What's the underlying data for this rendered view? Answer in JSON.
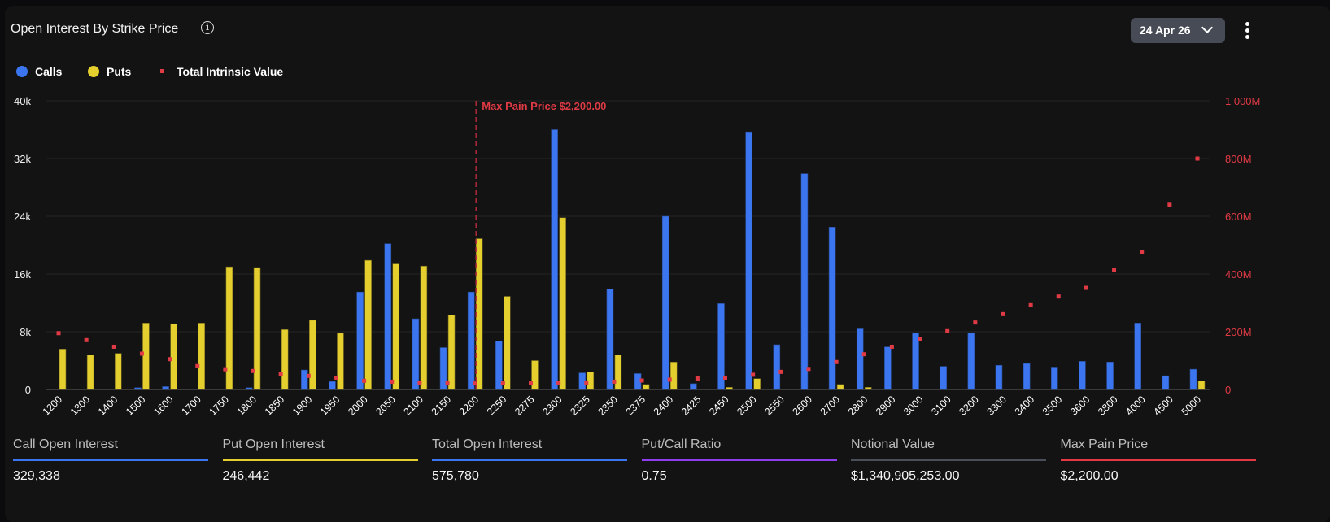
{
  "header": {
    "title": "Open Interest By Strike Price",
    "date_selected": "24 Apr 26"
  },
  "legend": [
    {
      "label": "Calls",
      "color": "#3b76f0"
    },
    {
      "label": "Puts",
      "color": "#e4cf2e"
    },
    {
      "label": "Total Intrinsic Value",
      "color": "#e03a45"
    }
  ],
  "annotation": {
    "label": "Max Pain Price $2,200.00",
    "strike": "2200"
  },
  "chart_data": {
    "type": "bar",
    "categories": [
      "1200",
      "1300",
      "1400",
      "1500",
      "1600",
      "1700",
      "1750",
      "1800",
      "1850",
      "1900",
      "1950",
      "2000",
      "2050",
      "2100",
      "2150",
      "2200",
      "2250",
      "2275",
      "2300",
      "2325",
      "2350",
      "2375",
      "2400",
      "2425",
      "2450",
      "2500",
      "2550",
      "2600",
      "2700",
      "2800",
      "2900",
      "3000",
      "3100",
      "3200",
      "3300",
      "3400",
      "3500",
      "3600",
      "3800",
      "4000",
      "4500",
      "5000"
    ],
    "series": [
      {
        "name": "Calls",
        "axis": "left",
        "color": "#3b76f0",
        "values": [
          0,
          0,
          0,
          250,
          400,
          0,
          0,
          250,
          0,
          2700,
          1100,
          13500,
          20200,
          9800,
          5800,
          13500,
          6700,
          0,
          36000,
          2300,
          13900,
          2200,
          24000,
          800,
          11900,
          35700,
          6200,
          29900,
          22500,
          8400,
          5900,
          7800,
          3200,
          7800,
          3350,
          3600,
          3100,
          3900,
          3800,
          9200,
          1900,
          2800
        ]
      },
      {
        "name": "Puts",
        "axis": "left",
        "color": "#e4cf2e",
        "values": [
          5600,
          4800,
          5000,
          9200,
          9100,
          9200,
          17000,
          16900,
          8300,
          9600,
          7800,
          17900,
          17400,
          17100,
          10300,
          20900,
          12900,
          4000,
          23800,
          2400,
          4800,
          700,
          3800,
          0,
          300,
          1500,
          0,
          0,
          700,
          300,
          0,
          0,
          0,
          0,
          0,
          0,
          0,
          0,
          0,
          0,
          0,
          1200
        ]
      },
      {
        "name": "Total Intrinsic Value",
        "axis": "right",
        "color": "#e03a45",
        "type": "scatter",
        "values": [
          195,
          171,
          148,
          124,
          105,
          81,
          70,
          64,
          54,
          47,
          41,
          30,
          27,
          24,
          21,
          21,
          21,
          21,
          24,
          24,
          27,
          31,
          34,
          38,
          41,
          51,
          61,
          71,
          95,
          122,
          148,
          175,
          202,
          232,
          261,
          292,
          322,
          352,
          415,
          476,
          640,
          800
        ]
      }
    ],
    "y_left": {
      "range": [
        0,
        40000
      ],
      "ticks": [
        "0",
        "8k",
        "16k",
        "24k",
        "32k",
        "40k"
      ]
    },
    "y_right": {
      "range": [
        0,
        1000
      ],
      "unit": "M",
      "ticks": [
        "0",
        "200M",
        "400M",
        "600M",
        "800M",
        "1 000M"
      ]
    },
    "grid": true,
    "legend_position": "top-left"
  },
  "stats": [
    {
      "label": "Call Open Interest",
      "value": "329,338",
      "color": "#3b76f0"
    },
    {
      "label": "Put Open Interest",
      "value": "246,442",
      "color": "#e4cf2e"
    },
    {
      "label": "Total Open Interest",
      "value": "575,780",
      "color": "#3b76f0"
    },
    {
      "label": "Put/Call Ratio",
      "value": "0.75",
      "color": "#8e3df0"
    },
    {
      "label": "Notional Value",
      "value": "$1,340,905,253.00",
      "color": "#4a4f5a"
    },
    {
      "label": "Max Pain Price",
      "value": "$2,200.00",
      "color": "#e53946"
    }
  ]
}
